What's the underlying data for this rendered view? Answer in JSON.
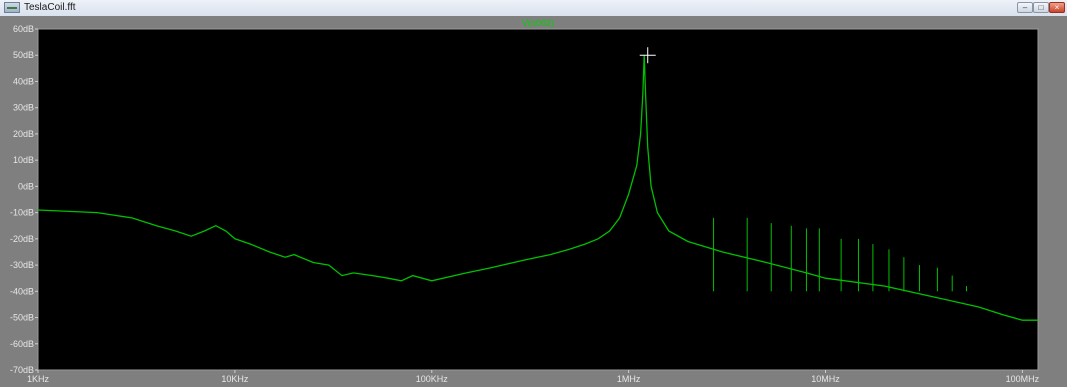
{
  "window": {
    "title": "TeslaCoil.fft",
    "min_glyph": "–",
    "max_glyph": "□",
    "close_glyph": "×"
  },
  "chart_data": {
    "type": "line",
    "title": "V(n002)",
    "xlabel": "",
    "ylabel": "",
    "x_scale": "log",
    "xlim": [
      1000,
      120000000
    ],
    "ylim": [
      -70,
      60
    ],
    "x_ticks": [
      {
        "value": 1000,
        "label": "1KHz"
      },
      {
        "value": 10000,
        "label": "10KHz"
      },
      {
        "value": 100000,
        "label": "100KHz"
      },
      {
        "value": 1000000,
        "label": "1MHz"
      },
      {
        "value": 10000000,
        "label": "10MHz"
      },
      {
        "value": 100000000,
        "label": "100MHz"
      }
    ],
    "y_ticks": [
      {
        "value": 60,
        "label": "60dB"
      },
      {
        "value": 50,
        "label": "50dB"
      },
      {
        "value": 40,
        "label": "40dB"
      },
      {
        "value": 30,
        "label": "30dB"
      },
      {
        "value": 20,
        "label": "20dB"
      },
      {
        "value": 10,
        "label": "10dB"
      },
      {
        "value": 0,
        "label": "0dB"
      },
      {
        "value": -10,
        "label": "-10dB"
      },
      {
        "value": -20,
        "label": "-20dB"
      },
      {
        "value": -30,
        "label": "-30dB"
      },
      {
        "value": -40,
        "label": "-40dB"
      },
      {
        "value": -50,
        "label": "-50dB"
      },
      {
        "value": -60,
        "label": "-60dB"
      },
      {
        "value": -70,
        "label": "-70dB"
      }
    ],
    "grid": false,
    "series": [
      {
        "name": "V(n002)",
        "color": "#00c000",
        "x": [
          1000,
          2000,
          3000,
          4000,
          5000,
          6000,
          7000,
          8000,
          9000,
          10000,
          12000,
          15000,
          18000,
          20000,
          25000,
          30000,
          35000,
          40000,
          50000,
          60000,
          70000,
          80000,
          100000,
          150000,
          200000,
          300000,
          400000,
          500000,
          600000,
          700000,
          800000,
          900000,
          1000000,
          1100000,
          1150000,
          1180000,
          1200000,
          1220000,
          1250000,
          1300000,
          1400000,
          1600000,
          2000000,
          3000000,
          5000000,
          8000000,
          10000000,
          20000000,
          40000000,
          60000000,
          80000000,
          100000000,
          120000000
        ],
        "y": [
          -9,
          -10,
          -12,
          -15,
          -17,
          -19,
          -17,
          -15,
          -17,
          -20,
          -22,
          -25,
          -27,
          -26,
          -29,
          -30,
          -34,
          -33,
          -34,
          -35,
          -36,
          -34,
          -36,
          -33,
          -31,
          -28,
          -26,
          -24,
          -22,
          -20,
          -17,
          -12,
          -3,
          8,
          20,
          35,
          50,
          35,
          15,
          0,
          -10,
          -17,
          -21,
          -25,
          -29,
          -33,
          -35,
          -38,
          -43,
          -46,
          -49,
          -51,
          -51
        ]
      }
    ],
    "spikes": [
      {
        "x": 2700000,
        "y": -12
      },
      {
        "x": 4000000,
        "y": -12
      },
      {
        "x": 5300000,
        "y": -14
      },
      {
        "x": 6700000,
        "y": -15
      },
      {
        "x": 8000000,
        "y": -16
      },
      {
        "x": 9300000,
        "y": -16
      },
      {
        "x": 12000000,
        "y": -20
      },
      {
        "x": 14700000,
        "y": -20
      },
      {
        "x": 17400000,
        "y": -22
      },
      {
        "x": 21000000,
        "y": -24
      },
      {
        "x": 25000000,
        "y": -27
      },
      {
        "x": 30000000,
        "y": -30
      },
      {
        "x": 37000000,
        "y": -31
      },
      {
        "x": 44000000,
        "y": -34
      },
      {
        "x": 52000000,
        "y": -38
      }
    ],
    "cursor": {
      "x": 1250000,
      "y": 50
    }
  }
}
